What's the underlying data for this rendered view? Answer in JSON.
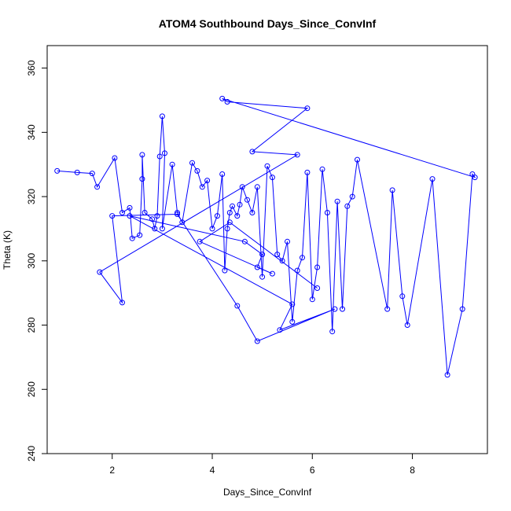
{
  "chart_data": {
    "type": "line",
    "title": "ATOM4 Southbound Days_Since_ConvInf",
    "xlabel": "Days_Since_ConvInf",
    "ylabel": "Theta (K)",
    "xlim": [
      0.7,
      9.5
    ],
    "ylim": [
      240,
      367
    ],
    "xticks": [
      2,
      4,
      6,
      8
    ],
    "yticks": [
      240,
      260,
      280,
      300,
      320,
      340,
      360
    ],
    "grid": false,
    "legend": "none",
    "series": [
      {
        "color": "#0000ff",
        "marker": "open-circle",
        "x": [
          0.9,
          1.3,
          1.6,
          1.7,
          2.05,
          2.2,
          2.35,
          2.4,
          2.55,
          2.6,
          2.6,
          2.65,
          2.8,
          2.85,
          2.9,
          2.95,
          3.0,
          3.05,
          3.0,
          3.2,
          3.3,
          3.4,
          3.6,
          3.7,
          3.8,
          3.9,
          4.0,
          4.1,
          4.2,
          4.25,
          4.3,
          4.35,
          4.4,
          4.5,
          4.55,
          4.6,
          4.7,
          4.8,
          4.9,
          5.0,
          5.1,
          5.2,
          5.3,
          5.4,
          5.5,
          5.6,
          5.7,
          5.8,
          5.9,
          6.0,
          6.1,
          6.2,
          6.3,
          6.4,
          6.5,
          6.6,
          6.7,
          6.8,
          6.9,
          7.5,
          7.6,
          7.8,
          7.9,
          8.4,
          8.7,
          9.0,
          9.2,
          9.25,
          4.2,
          4.3,
          5.9,
          4.8,
          5.7,
          1.75,
          2.2,
          2.0,
          3.3,
          4.5,
          4.9,
          6.45,
          5.35,
          5.6,
          2.35,
          4.65,
          5.0,
          4.9,
          5.2,
          3.75,
          4.35,
          6.1
        ],
        "y": [
          328,
          327.5,
          327.2,
          323,
          332,
          315,
          316.5,
          307,
          308,
          325.5,
          333,
          315,
          313,
          310,
          314,
          332.5,
          345,
          333.5,
          310,
          330,
          315,
          312,
          330.5,
          328,
          323,
          325,
          310,
          314,
          327,
          297,
          310,
          315,
          317,
          314,
          317.5,
          323,
          319,
          315,
          323,
          295,
          329.5,
          326,
          302,
          300,
          306,
          281,
          297,
          301,
          327.5,
          288,
          298,
          328.5,
          315,
          278,
          318.5,
          285,
          317,
          320,
          331.5,
          285,
          322,
          289,
          280,
          325.5,
          264.5,
          285,
          327,
          326,
          350.5,
          349.5,
          347.5,
          334,
          333,
          296.5,
          287,
          314,
          314.5,
          286,
          275,
          285,
          278.5,
          286.5,
          314,
          306,
          302,
          298,
          296,
          306,
          312,
          291.5
        ]
      }
    ]
  }
}
